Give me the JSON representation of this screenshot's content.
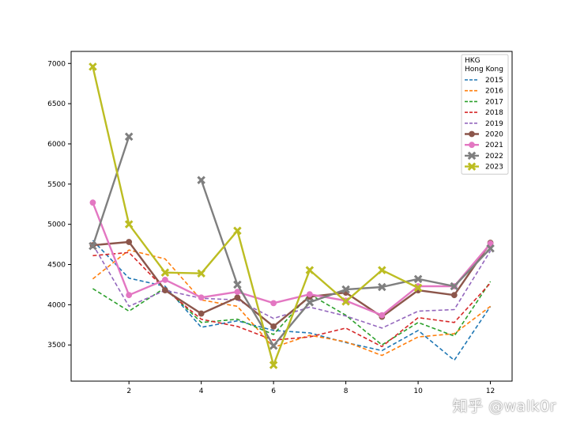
{
  "chart_data": {
    "type": "line",
    "x": [
      1,
      2,
      3,
      4,
      5,
      6,
      7,
      8,
      9,
      10,
      11,
      12
    ],
    "xticks": [
      2,
      4,
      6,
      8,
      10,
      12
    ],
    "yticks": [
      3500,
      4000,
      4500,
      5000,
      5500,
      6000,
      6500,
      7000
    ],
    "xlim": [
      0.4,
      12.6
    ],
    "ylim": [
      3050,
      7150
    ],
    "legend": {
      "title_line1": "HKG",
      "title_line2": "Hong Kong",
      "position": "upper right"
    },
    "series": [
      {
        "name": "2015",
        "color": "#1f77b4",
        "style": "dashed",
        "marker": "none",
        "values": [
          4800,
          4330,
          4230,
          3720,
          3800,
          3680,
          3650,
          3530,
          3430,
          3680,
          3310,
          3980
        ]
      },
      {
        "name": "2016",
        "color": "#ff7f0e",
        "style": "dashed",
        "marker": "none",
        "values": [
          4320,
          4680,
          4570,
          4060,
          3980,
          3470,
          3620,
          3540,
          3370,
          3600,
          3640,
          3980
        ]
      },
      {
        "name": "2017",
        "color": "#2ca02c",
        "style": "dashed",
        "marker": "none",
        "values": [
          4200,
          3920,
          4210,
          3780,
          3820,
          3630,
          4130,
          3870,
          3500,
          3780,
          3610,
          4290
        ]
      },
      {
        "name": "2018",
        "color": "#d62728",
        "style": "dashed",
        "marker": "none",
        "values": [
          4610,
          4650,
          4190,
          3820,
          3730,
          3560,
          3600,
          3710,
          3480,
          3840,
          3780,
          4270
        ]
      },
      {
        "name": "2019",
        "color": "#9467bd",
        "style": "dashed",
        "marker": "none",
        "values": [
          4750,
          3980,
          4180,
          4080,
          4060,
          3830,
          3970,
          3860,
          3710,
          3920,
          3940,
          4670
        ]
      },
      {
        "name": "2020",
        "color": "#8c564b",
        "style": "solid",
        "marker": "circle",
        "values": [
          4740,
          4780,
          4180,
          3890,
          4090,
          3730,
          4100,
          4150,
          3850,
          4180,
          4120,
          4770
        ]
      },
      {
        "name": "2021",
        "color": "#e377c2",
        "style": "solid",
        "marker": "circle",
        "values": [
          5270,
          4120,
          4310,
          4090,
          4160,
          4020,
          4130,
          4050,
          3870,
          4230,
          4230,
          4760
        ]
      },
      {
        "name": "2022",
        "color": "#7f7f7f",
        "style": "solid",
        "marker": "x",
        "values": [
          4730,
          6090,
          null,
          5550,
          4250,
          3490,
          4030,
          4190,
          4220,
          4320,
          4230,
          4700
        ]
      },
      {
        "name": "2023",
        "color": "#bcbd22",
        "style": "solid",
        "marker": "x",
        "values": [
          6960,
          5000,
          4400,
          4390,
          4920,
          3250,
          4430,
          4040,
          4430,
          4210,
          null,
          null
        ]
      }
    ]
  },
  "watermark": "知乎 @walk0r"
}
